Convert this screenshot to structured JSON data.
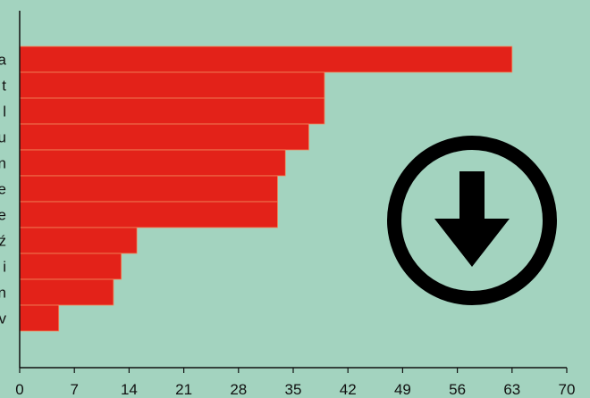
{
  "chart_data": {
    "type": "bar",
    "orientation": "horizontal",
    "categories": [
      "a",
      "t",
      "l",
      "u",
      "n",
      "e",
      "e",
      "ź",
      "i",
      "n",
      "v"
    ],
    "values": [
      63,
      39,
      39,
      37,
      34,
      33,
      33,
      15,
      13,
      12,
      5
    ],
    "xlim": [
      0,
      70
    ],
    "xticks": [
      "0",
      "7",
      "14",
      "21",
      "28",
      "35",
      "42",
      "49",
      "56",
      "63",
      "70"
    ],
    "title": "",
    "xlabel": "",
    "ylabel": "",
    "grid": false,
    "legend": "none",
    "colors": {
      "bar": "#e32219",
      "background": "#a3d3bf",
      "axis": "#111111",
      "separator": "#f08a5d"
    }
  },
  "overlay": {
    "icon": "download-arrow-circle-icon"
  }
}
